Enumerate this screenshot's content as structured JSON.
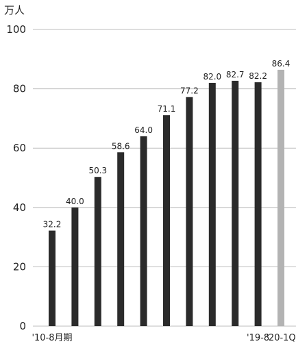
{
  "chart_data": {
    "type": "bar",
    "unit_label": "万人",
    "ylim": [
      0,
      100
    ],
    "y_ticks": [
      0,
      20,
      40,
      60,
      80,
      100
    ],
    "grid": true,
    "values": [
      32.2,
      40.0,
      50.3,
      58.6,
      64.0,
      71.1,
      77.2,
      82.0,
      82.7,
      82.2,
      86.4
    ],
    "value_labels": [
      "32.2",
      "40.0",
      "50.3",
      "58.6",
      "64.0",
      "71.1",
      "77.2",
      "82.0",
      "82.7",
      "82.2",
      "86.4"
    ],
    "x_tick_labels": [
      {
        "bar_index": 0,
        "text": "'10-8月期"
      },
      {
        "bar_index": 9,
        "text": "'19-8"
      },
      {
        "bar_index": 10,
        "text": "'20-1Q"
      }
    ],
    "bar_colors": [
      "#2b2b2b",
      "#2b2b2b",
      "#2b2b2b",
      "#2b2b2b",
      "#2b2b2b",
      "#2b2b2b",
      "#2b2b2b",
      "#2b2b2b",
      "#2b2b2b",
      "#2b2b2b",
      "#b3b3b3"
    ]
  }
}
